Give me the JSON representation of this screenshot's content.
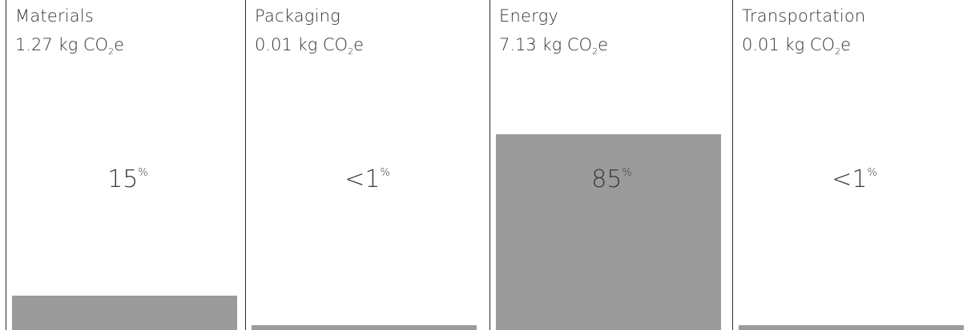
{
  "chart_data": {
    "type": "bar",
    "categories": [
      "Materials",
      "Packaging",
      "Energy",
      "Transportation"
    ],
    "emissions_kg_co2e": [
      1.27,
      0.01,
      7.13,
      0.01
    ],
    "values": [
      15,
      0.1,
      85,
      0.1
    ],
    "percent_labels": [
      "15",
      "<1",
      "85",
      "<1"
    ],
    "percent_symbol": "%",
    "unit_prefix": "kg CO",
    "unit_subscript": "2",
    "unit_suffix": "e",
    "bar_color": "#9b9b9b"
  }
}
